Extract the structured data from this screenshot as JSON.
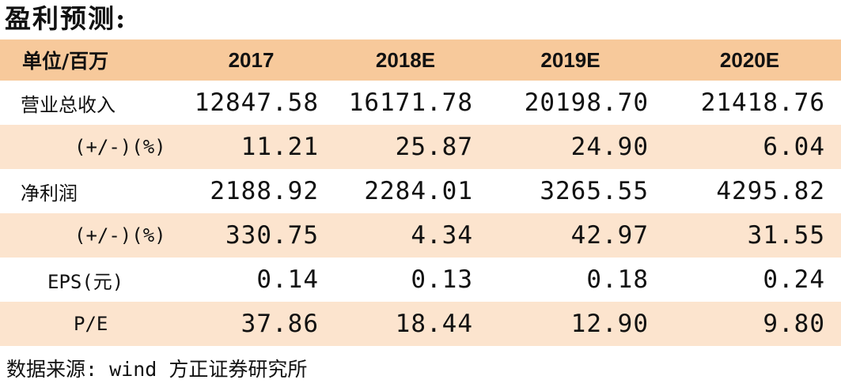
{
  "title": "盈利预测:",
  "table": {
    "headers": [
      "单位/百万",
      "2017",
      "2018E",
      "2019E",
      "2020E"
    ],
    "rows": [
      {
        "label": "营业总收入",
        "values": [
          "12847.58",
          "16171.78",
          "20198.70",
          "21418.76"
        ]
      },
      {
        "label": "(+/-)(%)",
        "values": [
          "11.21",
          "25.87",
          "24.90",
          "6.04"
        ]
      },
      {
        "label": "净利润",
        "values": [
          "2188.92",
          "2284.01",
          "3265.55",
          "4295.82"
        ]
      },
      {
        "label": "(+/-)(%)",
        "values": [
          "330.75",
          "4.34",
          "42.97",
          "31.55"
        ]
      },
      {
        "label": "EPS(元)",
        "values": [
          "0.14",
          "0.13",
          "0.18",
          "0.24"
        ]
      },
      {
        "label": "P/E",
        "values": [
          "37.86",
          "18.44",
          "12.90",
          "9.80"
        ]
      }
    ]
  },
  "source": "数据来源: wind 方正证券研究所",
  "colors": {
    "header_bg": "#f7c99b",
    "stripe_bg": "#fce4ce",
    "plain_bg": "#ffffff",
    "text": "#111111"
  }
}
